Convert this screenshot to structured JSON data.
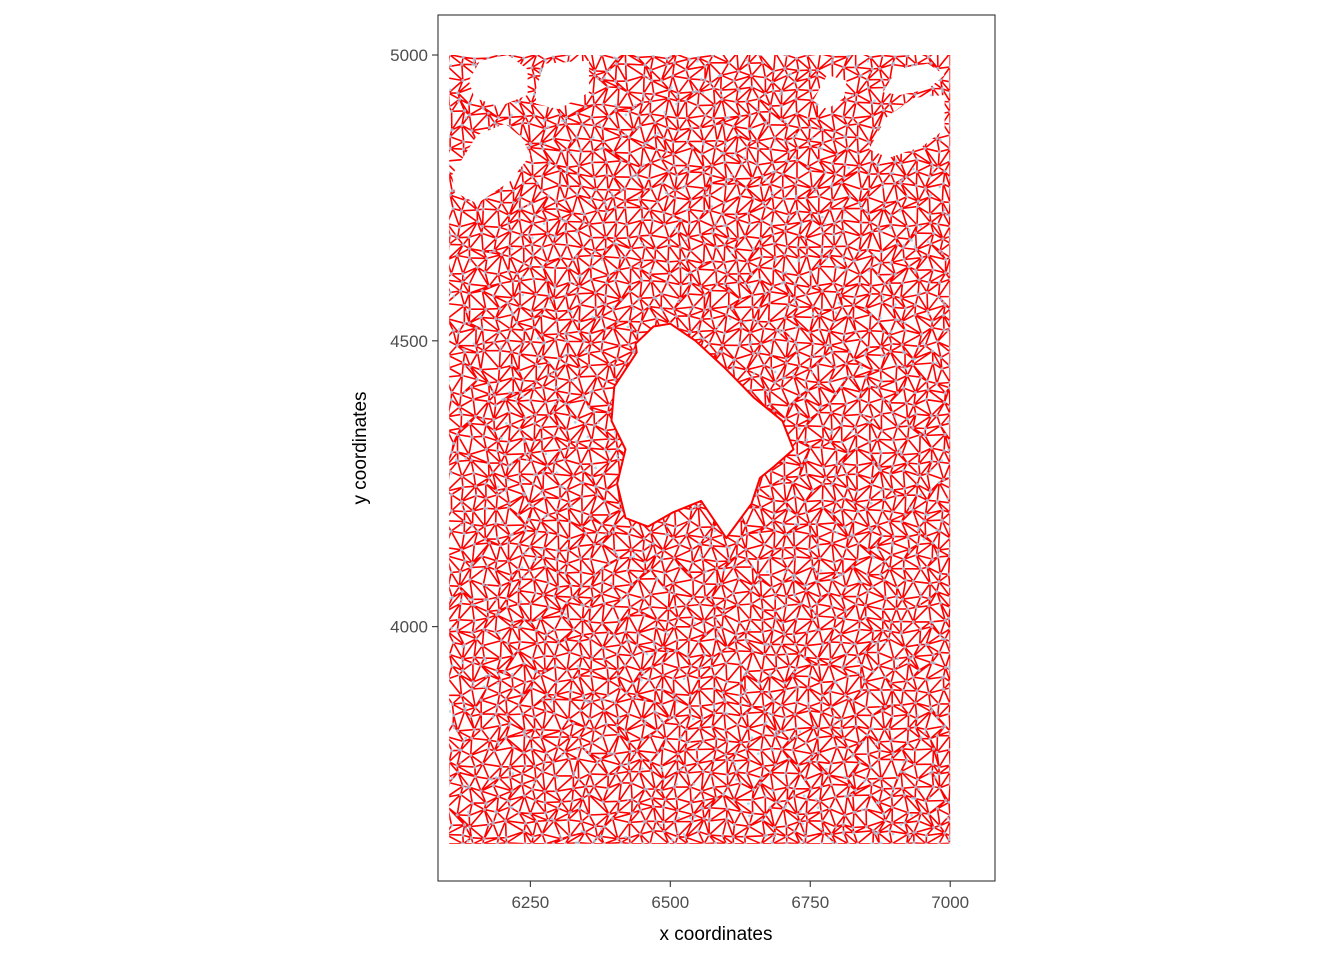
{
  "chart_data": {
    "type": "scatter",
    "subtype": "spatial-network",
    "title": "",
    "xlabel": "x coordinates",
    "ylabel": "y coordinates",
    "xlim": [
      6085,
      7080
    ],
    "ylim": [
      3555,
      5070
    ],
    "x_ticks": [
      6250,
      6500,
      6750,
      7000
    ],
    "y_ticks": [
      4000,
      4500,
      5000
    ],
    "x_tick_labels": [
      "6250",
      "6500",
      "6750",
      "7000"
    ],
    "y_tick_labels": [
      "4000",
      "4500",
      "5000"
    ],
    "grid": false,
    "legend": "none",
    "point_color": "#a6cee3",
    "edge_color": "#ff0000",
    "point_extent": {
      "x": [
        6105,
        7000
      ],
      "y": [
        3620,
        5000
      ]
    },
    "hole_outline": [
      [
        6438,
        4495
      ],
      [
        6470,
        4525
      ],
      [
        6500,
        4530
      ],
      [
        6545,
        4500
      ],
      [
        6600,
        4450
      ],
      [
        6650,
        4400
      ],
      [
        6700,
        4360
      ],
      [
        6720,
        4310
      ],
      [
        6685,
        4280
      ],
      [
        6660,
        4260
      ],
      [
        6645,
        4215
      ],
      [
        6600,
        4155
      ],
      [
        6555,
        4220
      ],
      [
        6505,
        4200
      ],
      [
        6460,
        4175
      ],
      [
        6420,
        4190
      ],
      [
        6405,
        4250
      ],
      [
        6420,
        4310
      ],
      [
        6395,
        4360
      ],
      [
        6400,
        4420
      ],
      [
        6440,
        4480
      ]
    ],
    "gap_regions": [
      [
        [
          6110,
          4790
        ],
        [
          6155,
          4860
        ],
        [
          6205,
          4880
        ],
        [
          6235,
          4855
        ],
        [
          6250,
          4825
        ],
        [
          6215,
          4780
        ],
        [
          6155,
          4740
        ],
        [
          6115,
          4760
        ]
      ],
      [
        [
          6140,
          4955
        ],
        [
          6160,
          4990
        ],
        [
          6210,
          5000
        ],
        [
          6245,
          4975
        ],
        [
          6245,
          4930
        ],
        [
          6195,
          4910
        ],
        [
          6150,
          4925
        ]
      ],
      [
        [
          6260,
          4940
        ],
        [
          6275,
          4985
        ],
        [
          6355,
          4990
        ],
        [
          6355,
          4935
        ],
        [
          6300,
          4905
        ],
        [
          6260,
          4915
        ]
      ],
      [
        [
          6855,
          4835
        ],
        [
          6885,
          4890
        ],
        [
          6935,
          4925
        ],
        [
          6990,
          4930
        ],
        [
          6990,
          4870
        ],
        [
          6950,
          4840
        ],
        [
          6890,
          4820
        ]
      ],
      [
        [
          6880,
          4935
        ],
        [
          6905,
          4975
        ],
        [
          6960,
          4985
        ],
        [
          6990,
          4965
        ],
        [
          6960,
          4940
        ],
        [
          6910,
          4930
        ]
      ],
      [
        [
          6755,
          4920
        ],
        [
          6780,
          4965
        ],
        [
          6815,
          4955
        ],
        [
          6810,
          4925
        ],
        [
          6780,
          4905
        ]
      ]
    ]
  }
}
